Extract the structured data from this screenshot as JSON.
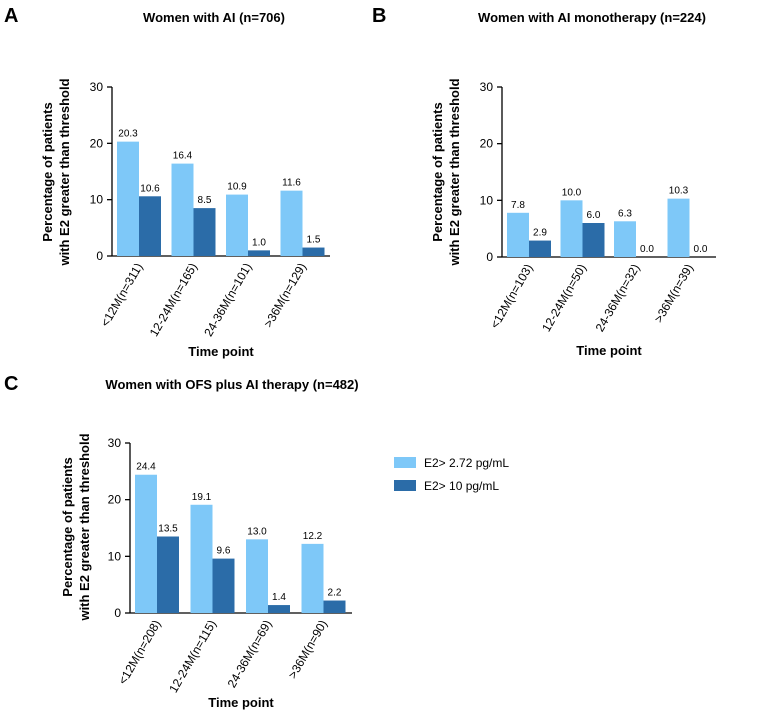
{
  "chart_data": [
    {
      "panel": "A",
      "type": "bar",
      "title": "Women with AI (n=706)",
      "ylabel_line1": "Percentage of patients",
      "ylabel_line2": "with E2 greater than threshold",
      "xlabel": "Time point",
      "ylim": [
        0,
        30
      ],
      "yticks": [
        0,
        10,
        20,
        30
      ],
      "categories": [
        "<12M(n=311)",
        "12-24M(n=165)",
        "24-36M(n=101)",
        ">36M(n=129)"
      ],
      "series": [
        {
          "name": "E2> 2.72 pg/mL",
          "values": [
            20.3,
            16.4,
            10.9,
            11.6
          ],
          "labels": [
            "20.3",
            "16.4",
            "10.9",
            "11.6"
          ]
        },
        {
          "name": "E2> 10 pg/mL",
          "values": [
            10.6,
            8.5,
            1.0,
            1.5
          ],
          "labels": [
            "10.6",
            "8.5",
            "1.0",
            "1.5"
          ]
        }
      ]
    },
    {
      "panel": "B",
      "type": "bar",
      "title": "Women with AI monotherapy (n=224)",
      "ylabel_line1": "Percentage of patients",
      "ylabel_line2": "with E2 greater than threshold",
      "xlabel": "Time point",
      "ylim": [
        0,
        30
      ],
      "yticks": [
        0,
        10,
        20,
        30
      ],
      "categories": [
        "<12M(n=103)",
        "12-24M(n=50)",
        "24-36M(n=32)",
        ">36M(n=39)"
      ],
      "series": [
        {
          "name": "E2> 2.72 pg/mL",
          "values": [
            7.8,
            10.0,
            6.3,
            10.3
          ],
          "labels": [
            "7.8",
            "10.0",
            "6.3",
            "10.3"
          ]
        },
        {
          "name": "E2> 10 pg/mL",
          "values": [
            2.9,
            6.0,
            0.0,
            0.0
          ],
          "labels": [
            "2.9",
            "6.0",
            "0.0",
            "0.0"
          ]
        }
      ]
    },
    {
      "panel": "C",
      "type": "bar",
      "title": "Women with OFS plus AI therapy (n=482)",
      "ylabel_line1": "Percentage of patients",
      "ylabel_line2": "with E2 greater than threshold",
      "xlabel": "Time point",
      "ylim": [
        0,
        30
      ],
      "yticks": [
        0,
        10,
        20,
        30
      ],
      "categories": [
        "<12M(n=208)",
        "12-24M(n=115)",
        "24-36M(n=69)",
        ">36M(n=90)"
      ],
      "series": [
        {
          "name": "E2> 2.72 pg/mL",
          "values": [
            24.4,
            19.1,
            13.0,
            12.2
          ],
          "labels": [
            "24.4",
            "19.1",
            "13.0",
            "12.2"
          ]
        },
        {
          "name": "E2> 10 pg/mL",
          "values": [
            13.5,
            9.6,
            1.4,
            2.2
          ],
          "labels": [
            "13.5",
            "9.6",
            "1.4",
            "2.2"
          ]
        }
      ]
    }
  ],
  "legend": {
    "position": "right of panel C",
    "items": [
      {
        "label": "E2> 2.72 pg/mL",
        "color": "#7ec8f8"
      },
      {
        "label": "E2> 10 pg/mL",
        "color": "#2b6ca8"
      }
    ]
  },
  "colors": {
    "light_bar": "#7ec8f8",
    "dark_bar": "#2b6ca8",
    "axis": "#000000"
  }
}
